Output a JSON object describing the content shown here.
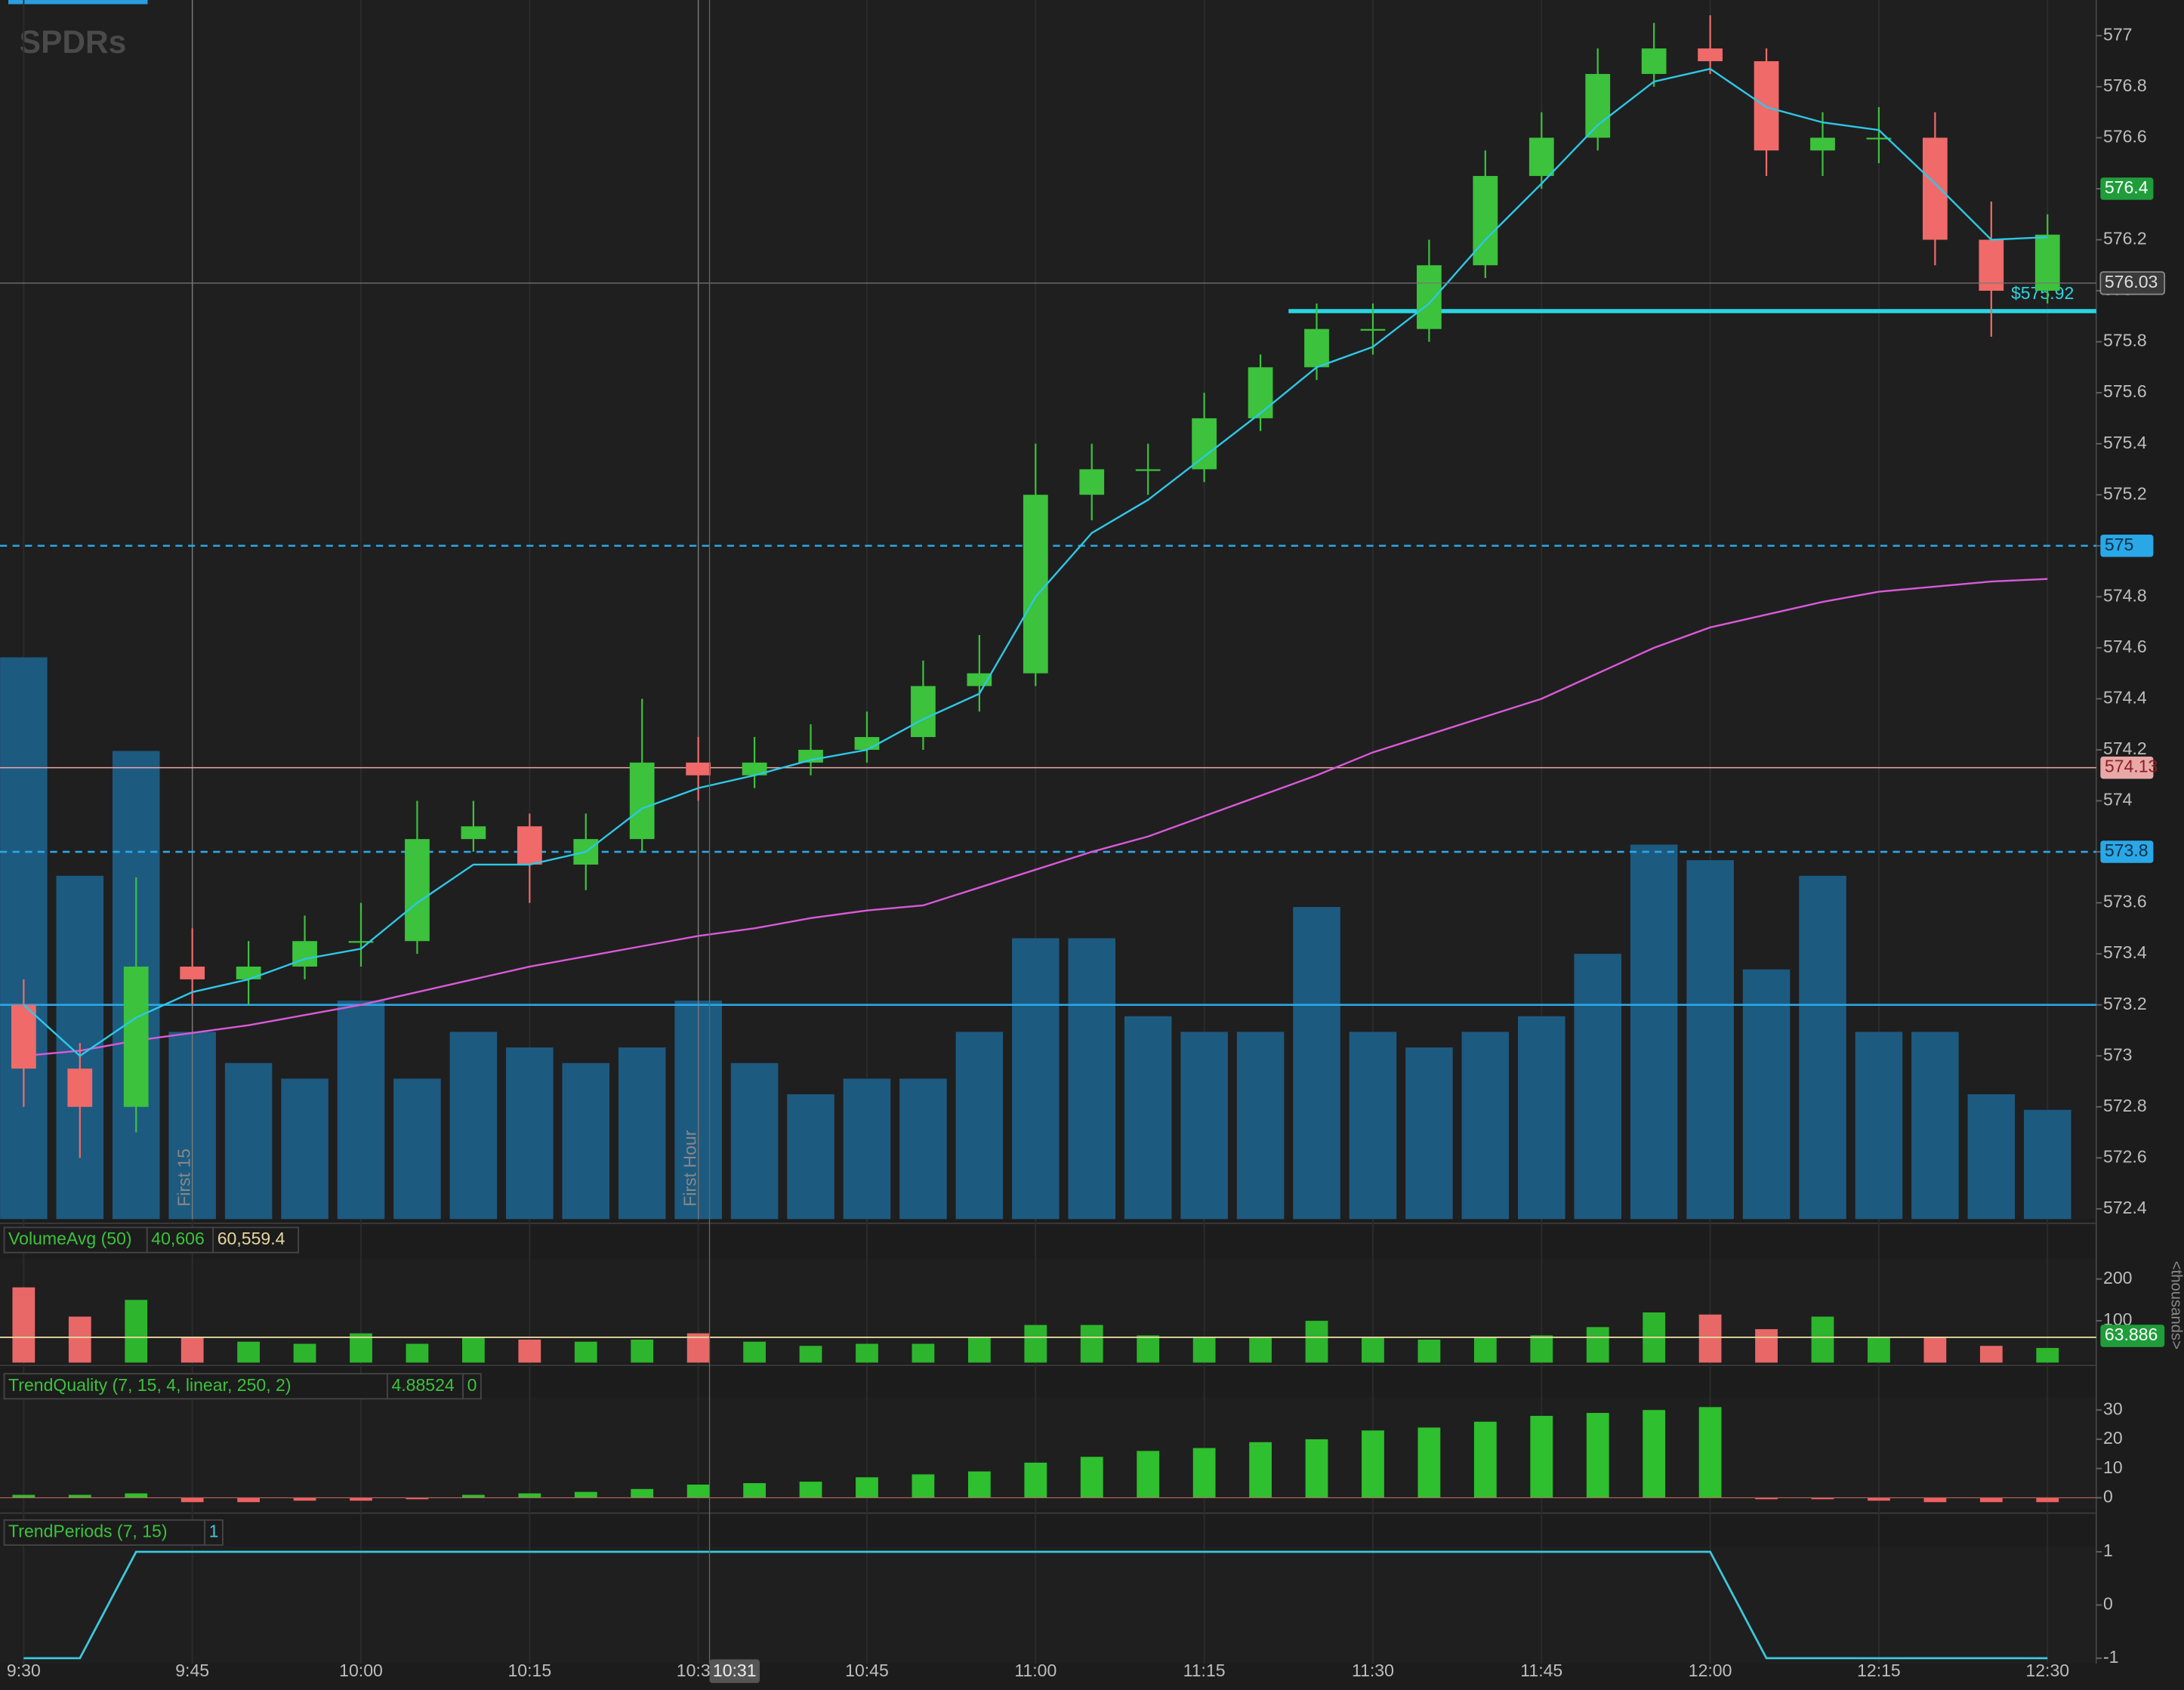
{
  "logo": "SPDRs",
  "chart_data": [
    {
      "type": "candlestick",
      "categories": [
        "9:30",
        null,
        null,
        "9:45",
        null,
        null,
        "10:00",
        null,
        null,
        "10:15",
        null,
        null,
        "10:30",
        null,
        null,
        "10:45",
        null,
        null,
        "11:00",
        null,
        null,
        "11:15",
        null,
        null,
        "11:30",
        null,
        null,
        "11:45",
        null,
        null,
        "12:00",
        null,
        null,
        "12:15",
        null,
        null,
        "12:30"
      ],
      "open": [
        573.2,
        572.95,
        572.8,
        573.35,
        573.3,
        573.35,
        573.45,
        573.45,
        573.85,
        573.9,
        573.75,
        573.85,
        574.15,
        574.1,
        574.15,
        574.2,
        574.25,
        574.45,
        574.5,
        575.2,
        575.3,
        575.3,
        575.5,
        575.7,
        575.85,
        575.85,
        576.1,
        576.45,
        576.6,
        576.85,
        576.95,
        576.9,
        576.55,
        576.6,
        576.6,
        576.2,
        576.0
      ],
      "high": [
        573.3,
        573.05,
        573.7,
        573.5,
        573.45,
        573.55,
        573.6,
        574.0,
        574.0,
        573.95,
        573.95,
        574.4,
        574.25,
        574.25,
        574.3,
        574.35,
        574.55,
        574.65,
        575.4,
        575.4,
        575.4,
        575.6,
        575.75,
        575.95,
        575.95,
        576.2,
        576.55,
        576.7,
        576.95,
        577.05,
        577.08,
        576.95,
        576.7,
        576.72,
        576.7,
        576.35,
        576.3
      ],
      "low": [
        572.8,
        572.6,
        572.7,
        573.2,
        573.2,
        573.3,
        573.35,
        573.4,
        573.8,
        573.6,
        573.65,
        573.8,
        574.0,
        574.05,
        574.1,
        574.15,
        574.2,
        574.35,
        574.45,
        575.1,
        575.2,
        575.25,
        575.45,
        575.65,
        575.75,
        575.8,
        576.05,
        576.4,
        576.55,
        576.8,
        576.85,
        576.45,
        576.45,
        576.5,
        576.1,
        575.82,
        575.95
      ],
      "close": [
        572.95,
        572.8,
        573.35,
        573.3,
        573.35,
        573.45,
        573.45,
        573.85,
        573.9,
        573.75,
        573.85,
        574.15,
        574.1,
        574.15,
        574.2,
        574.25,
        574.45,
        574.5,
        575.2,
        575.3,
        575.3,
        575.5,
        575.7,
        575.85,
        575.85,
        576.1,
        576.45,
        576.6,
        576.85,
        576.95,
        576.9,
        576.55,
        576.6,
        576.6,
        576.2,
        576.0,
        576.22
      ],
      "color_up": "#3cc23c",
      "color_down": "#f06a6a",
      "lines": [
        {
          "color": "#2ec8e6",
          "values": [
            573.2,
            573.0,
            573.15,
            573.25,
            573.3,
            573.38,
            573.42,
            573.6,
            573.75,
            573.75,
            573.8,
            573.97,
            574.05,
            574.1,
            574.16,
            574.2,
            574.32,
            574.42,
            574.8,
            575.05,
            575.18,
            575.35,
            575.52,
            575.7,
            575.78,
            575.95,
            576.2,
            576.42,
            576.65,
            576.82,
            576.87,
            576.72,
            576.66,
            576.63,
            576.42,
            576.2,
            576.21
          ]
        },
        {
          "color": "#d85ad8",
          "values": [
            573.0,
            573.02,
            573.06,
            573.09,
            573.12,
            573.16,
            573.2,
            573.25,
            573.3,
            573.35,
            573.39,
            573.43,
            573.47,
            573.5,
            573.54,
            573.57,
            573.59,
            573.66,
            573.73,
            573.8,
            573.86,
            573.94,
            574.02,
            574.1,
            574.19,
            574.26,
            574.33,
            574.4,
            574.5,
            574.6,
            574.68,
            574.73,
            574.78,
            574.82,
            574.84,
            574.86,
            574.87
          ]
        }
      ],
      "levels": [
        {
          "value": 575,
          "color": "#2aa7e6",
          "style": "dashed",
          "tag": true
        },
        {
          "value": 573.8,
          "color": "#2aa7e6",
          "style": "dashed",
          "tag": true
        },
        {
          "value": 573.2,
          "color": "#2aa7e6",
          "style": "solid",
          "tag": false
        },
        {
          "value": 574.13,
          "color": "#e8a8a8",
          "style": "thin",
          "tag": true
        },
        {
          "value": 575.92,
          "value_label": "$575.92",
          "color": "#2ad6e2",
          "style": "thick",
          "tag": false
        }
      ],
      "price_tags": [
        {
          "value": 576.4,
          "color": "#1f9d3a"
        }
      ],
      "cursor": {
        "time": "10:31",
        "price": 576.03
      },
      "annotations": [
        {
          "text": "First 15",
          "at": "9:45"
        },
        {
          "text": "First Hour",
          "at": "10:30"
        }
      ],
      "ylim": [
        572.36,
        577.14
      ],
      "yticks": [
        572.4,
        572.6,
        572.8,
        573,
        573.2,
        573.4,
        573.6,
        573.8,
        574,
        574.2,
        574.4,
        574.6,
        574.8,
        575,
        575.2,
        575.4,
        575.6,
        575.8,
        576,
        576.2,
        576.4,
        576.6,
        576.8,
        577
      ]
    },
    {
      "type": "bar",
      "title": "VolumeAvg (50)",
      "readout": "40,606",
      "values": [
        180,
        110,
        150,
        60,
        50,
        45,
        70,
        45,
        60,
        55,
        50,
        55,
        70,
        50,
        40,
        45,
        45,
        60,
        90,
        90,
        65,
        60,
        60,
        100,
        60,
        55,
        60,
        65,
        85,
        120,
        115,
        80,
        110,
        60,
        60,
        40,
        35
      ],
      "avg": {
        "value": 60.5594,
        "label": "60,559.4"
      },
      "last_tag": 63.886,
      "unit_label": "<thousands>",
      "color_up": "#2db52d",
      "color_down": "#e86868",
      "overlay_color": "#1d5a80",
      "avg_color": "#e6d6a0",
      "ylim": [
        0,
        250
      ],
      "yticks": [
        100,
        200
      ]
    },
    {
      "type": "bar",
      "title": "TrendQuality (7, 15, 4, linear, 250, 2)",
      "readout": "4.88524",
      "readout2": "0",
      "values": [
        1,
        1,
        1.5,
        -1.5,
        -1.5,
        -1,
        -1,
        -0.5,
        1,
        1.5,
        2,
        3,
        4.5,
        5,
        5.5,
        7,
        8,
        9,
        12,
        14,
        16,
        17,
        19,
        20,
        23,
        24,
        26,
        28,
        29,
        30,
        31,
        -0.5,
        -0.5,
        -1,
        -1.5,
        -1.5,
        -1.5
      ],
      "color_up": "#2ec02e",
      "color_down": "#f06060",
      "ylim": [
        -3.8,
        34.3
      ],
      "yticks": [
        0,
        10,
        20,
        30
      ]
    },
    {
      "type": "line",
      "title": "TrendPeriods (7, 15)",
      "readout": "1",
      "values": [
        -1,
        -1,
        1,
        1,
        1,
        1,
        1,
        1,
        1,
        1,
        1,
        1,
        1,
        1,
        1,
        1,
        1,
        1,
        1,
        1,
        1,
        1,
        1,
        1,
        1,
        1,
        1,
        1,
        1,
        1,
        1,
        -1,
        -1,
        -1,
        -1,
        -1,
        -1
      ],
      "color": "#3cc8dc",
      "ylim": [
        -1.1,
        1.1
      ],
      "yticks": [
        -1,
        0,
        1
      ]
    }
  ]
}
